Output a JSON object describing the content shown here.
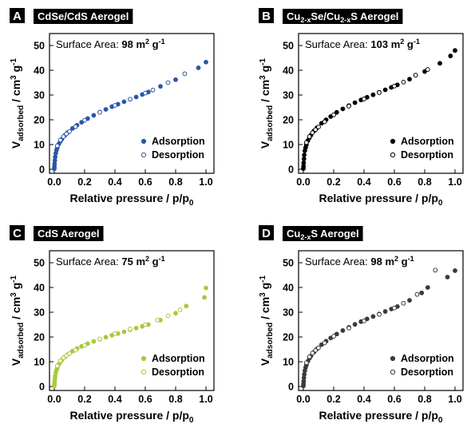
{
  "figure": {
    "xlabel_main": "Relative pressure / p/p",
    "xlabel_sub": "0",
    "ylabel_main": "V",
    "ylabel_sub": "adsorbed",
    "ylabel_rest": " / cm",
    "ylabel_sup": "3",
    "ylabel_end": " g",
    "ylabel_sup2": "-1"
  },
  "chart_data": [
    {
      "type": "scatter",
      "panel_letter": "A",
      "title_parts": [
        "CdSe/CdS Aerogel"
      ],
      "annotation": {
        "prefix": "Surface Area: ",
        "value": "98",
        "unit": " m",
        "unit_sup": "2",
        "unit_end": " g",
        "unit_sup2": "-1"
      },
      "color": "#2b56a7",
      "xlim": [
        0,
        1
      ],
      "ylim": [
        0,
        50
      ],
      "xticks": [
        "0.0",
        "0.2",
        "0.4",
        "0.6",
        "0.8",
        "1.0"
      ],
      "yticks": [
        "0",
        "10",
        "20",
        "30",
        "40",
        "50"
      ],
      "legend": [
        "Adsorption",
        "Desorption"
      ],
      "legend_position": "bottom-right",
      "series": [
        {
          "name": "Adsorption",
          "marker": "filled",
          "x": [
            0.0,
            0.001,
            0.002,
            0.004,
            0.006,
            0.01,
            0.015,
            0.02,
            0.03,
            0.04,
            0.05,
            0.07,
            0.09,
            0.12,
            0.15,
            0.18,
            0.22,
            0.26,
            0.3,
            0.34,
            0.38,
            0.42,
            0.46,
            0.5,
            0.54,
            0.58,
            0.62,
            0.7,
            0.8,
            0.95,
            1.0
          ],
          "y": [
            0.2,
            1.0,
            2.2,
            3.6,
            5.0,
            6.5,
            7.8,
            8.8,
            10.2,
            11.3,
            12.2,
            13.7,
            14.9,
            16.5,
            17.8,
            19.0,
            20.5,
            21.8,
            23.1,
            24.2,
            25.3,
            26.3,
            27.3,
            28.3,
            29.2,
            30.2,
            31.2,
            33.5,
            36.2,
            41.0,
            43.3
          ]
        },
        {
          "name": "Desorption",
          "marker": "open",
          "x": [
            0.02,
            0.04,
            0.06,
            0.08,
            0.1,
            0.14,
            0.2,
            0.3,
            0.4,
            0.5,
            0.6,
            0.65,
            0.75,
            0.86
          ],
          "y": [
            9.5,
            11.8,
            13.2,
            14.3,
            15.3,
            17.2,
            19.8,
            23.0,
            25.8,
            28.3,
            30.8,
            32.0,
            35.0,
            38.6
          ]
        }
      ]
    },
    {
      "type": "scatter",
      "panel_letter": "B",
      "title_parts": [
        "Cu",
        "2-x",
        "Se/Cu",
        "2-x",
        "S Aerogel"
      ],
      "annotation": {
        "prefix": "Surface Area: ",
        "value": "103",
        "unit": " m",
        "unit_sup": "2",
        "unit_end": " g",
        "unit_sup2": "-1"
      },
      "color": "#000000",
      "xlim": [
        0,
        1
      ],
      "ylim": [
        0,
        50
      ],
      "xticks": [
        "0.0",
        "0.2",
        "0.4",
        "0.6",
        "0.8",
        "1.0"
      ],
      "yticks": [
        "0",
        "10",
        "20",
        "30",
        "40",
        "50"
      ],
      "legend": [
        "Adsorption",
        "Desorption"
      ],
      "legend_position": "bottom-right",
      "series": [
        {
          "name": "Adsorption",
          "marker": "filled",
          "x": [
            0.0,
            0.001,
            0.002,
            0.004,
            0.006,
            0.01,
            0.015,
            0.02,
            0.03,
            0.04,
            0.05,
            0.07,
            0.09,
            0.12,
            0.15,
            0.18,
            0.22,
            0.26,
            0.3,
            0.34,
            0.38,
            0.42,
            0.46,
            0.5,
            0.54,
            0.58,
            0.62,
            0.7,
            0.8,
            0.9,
            0.97,
            1.0
          ],
          "y": [
            0.3,
            1.2,
            2.6,
            4.2,
            5.8,
            7.5,
            8.8,
            9.9,
            11.6,
            12.8,
            13.8,
            15.5,
            16.8,
            18.6,
            20.0,
            21.3,
            23.0,
            24.4,
            25.7,
            26.9,
            28.0,
            29.1,
            30.1,
            31.1,
            32.1,
            33.1,
            34.1,
            36.4,
            39.5,
            42.8,
            45.8,
            48.0
          ]
        },
        {
          "name": "Desorption",
          "marker": "open",
          "x": [
            0.02,
            0.04,
            0.06,
            0.08,
            0.1,
            0.14,
            0.2,
            0.3,
            0.4,
            0.5,
            0.6,
            0.66,
            0.74,
            0.82
          ],
          "y": [
            10.8,
            13.2,
            14.8,
            16.0,
            17.1,
            19.2,
            22.0,
            25.5,
            28.4,
            31.0,
            33.6,
            35.2,
            38.0,
            40.3
          ]
        }
      ]
    },
    {
      "type": "scatter",
      "panel_letter": "C",
      "title_parts": [
        "CdS Aerogel"
      ],
      "annotation": {
        "prefix": "Surface Area: ",
        "value": "75",
        "unit": " m",
        "unit_sup": "2",
        "unit_end": " g",
        "unit_sup2": "-1"
      },
      "color": "#a9c93c",
      "xlim": [
        0,
        1
      ],
      "ylim": [
        0,
        50
      ],
      "xticks": [
        "0.0",
        "0.2",
        "0.4",
        "0.6",
        "0.8",
        "1.0"
      ],
      "yticks": [
        "0",
        "10",
        "20",
        "30",
        "40",
        "50"
      ],
      "legend": [
        "Adsorption",
        "Desorption"
      ],
      "legend_position": "bottom-right",
      "series": [
        {
          "name": "Adsorption",
          "marker": "filled",
          "x": [
            0.0,
            0.001,
            0.002,
            0.004,
            0.006,
            0.01,
            0.015,
            0.02,
            0.03,
            0.04,
            0.05,
            0.07,
            0.09,
            0.12,
            0.15,
            0.18,
            0.22,
            0.26,
            0.3,
            0.34,
            0.38,
            0.42,
            0.46,
            0.5,
            0.54,
            0.58,
            0.62,
            0.7,
            0.8,
            0.87,
            0.99,
            1.0
          ],
          "y": [
            0.2,
            0.9,
            1.8,
            3.0,
            4.2,
            5.6,
            6.7,
            7.6,
            8.9,
            9.9,
            10.7,
            12.0,
            13.0,
            14.3,
            15.3,
            16.2,
            17.3,
            18.2,
            19.1,
            19.9,
            20.7,
            21.4,
            22.1,
            22.9,
            23.6,
            24.3,
            25.0,
            26.8,
            29.6,
            32.5,
            36.0,
            39.8
          ]
        },
        {
          "name": "Desorption",
          "marker": "open",
          "x": [
            0.02,
            0.04,
            0.06,
            0.08,
            0.1,
            0.14,
            0.2,
            0.3,
            0.4,
            0.5,
            0.6,
            0.68,
            0.75,
            0.83
          ],
          "y": [
            8.3,
            10.4,
            11.6,
            12.5,
            13.3,
            14.7,
            16.6,
            19.2,
            21.4,
            23.2,
            25.0,
            26.8,
            28.6,
            31.0
          ]
        }
      ]
    },
    {
      "type": "scatter",
      "panel_letter": "D",
      "title_parts": [
        "Cu",
        "2-x",
        "S Aerogel"
      ],
      "annotation": {
        "prefix": "Surface Area: ",
        "value": "98",
        "unit": " m",
        "unit_sup": "2",
        "unit_end": " g",
        "unit_sup2": "-1"
      },
      "color": "#3a3a3a",
      "xlim": [
        0,
        1
      ],
      "ylim": [
        0,
        50
      ],
      "xticks": [
        "0.0",
        "0.2",
        "0.4",
        "0.6",
        "0.8",
        "1.0"
      ],
      "yticks": [
        "0",
        "10",
        "20",
        "30",
        "40",
        "50"
      ],
      "legend": [
        "Adsorption",
        "Desorption"
      ],
      "legend_position": "bottom-right",
      "series": [
        {
          "name": "Adsorption",
          "marker": "filled",
          "x": [
            0.0,
            0.001,
            0.002,
            0.004,
            0.006,
            0.01,
            0.015,
            0.02,
            0.03,
            0.04,
            0.05,
            0.07,
            0.09,
            0.12,
            0.15,
            0.18,
            0.22,
            0.26,
            0.3,
            0.34,
            0.38,
            0.42,
            0.46,
            0.5,
            0.54,
            0.58,
            0.62,
            0.7,
            0.78,
            0.82,
            0.95,
            1.0
          ],
          "y": [
            0.2,
            1.0,
            2.1,
            3.5,
            4.9,
            6.4,
            7.7,
            8.7,
            10.2,
            11.4,
            12.3,
            13.9,
            15.2,
            16.9,
            18.3,
            19.6,
            21.2,
            22.6,
            23.9,
            25.1,
            26.2,
            27.3,
            28.3,
            29.3,
            30.3,
            31.3,
            32.3,
            34.8,
            37.8,
            40.0,
            44.2,
            46.8
          ]
        },
        {
          "name": "Desorption",
          "marker": "open",
          "x": [
            0.02,
            0.04,
            0.06,
            0.08,
            0.1,
            0.14,
            0.2,
            0.3,
            0.4,
            0.5,
            0.6,
            0.66,
            0.75,
            0.87
          ],
          "y": [
            9.6,
            12.0,
            13.5,
            14.6,
            15.6,
            17.6,
            20.3,
            23.6,
            26.5,
            29.1,
            31.7,
            33.6,
            37.2,
            47.0
          ]
        }
      ]
    }
  ]
}
